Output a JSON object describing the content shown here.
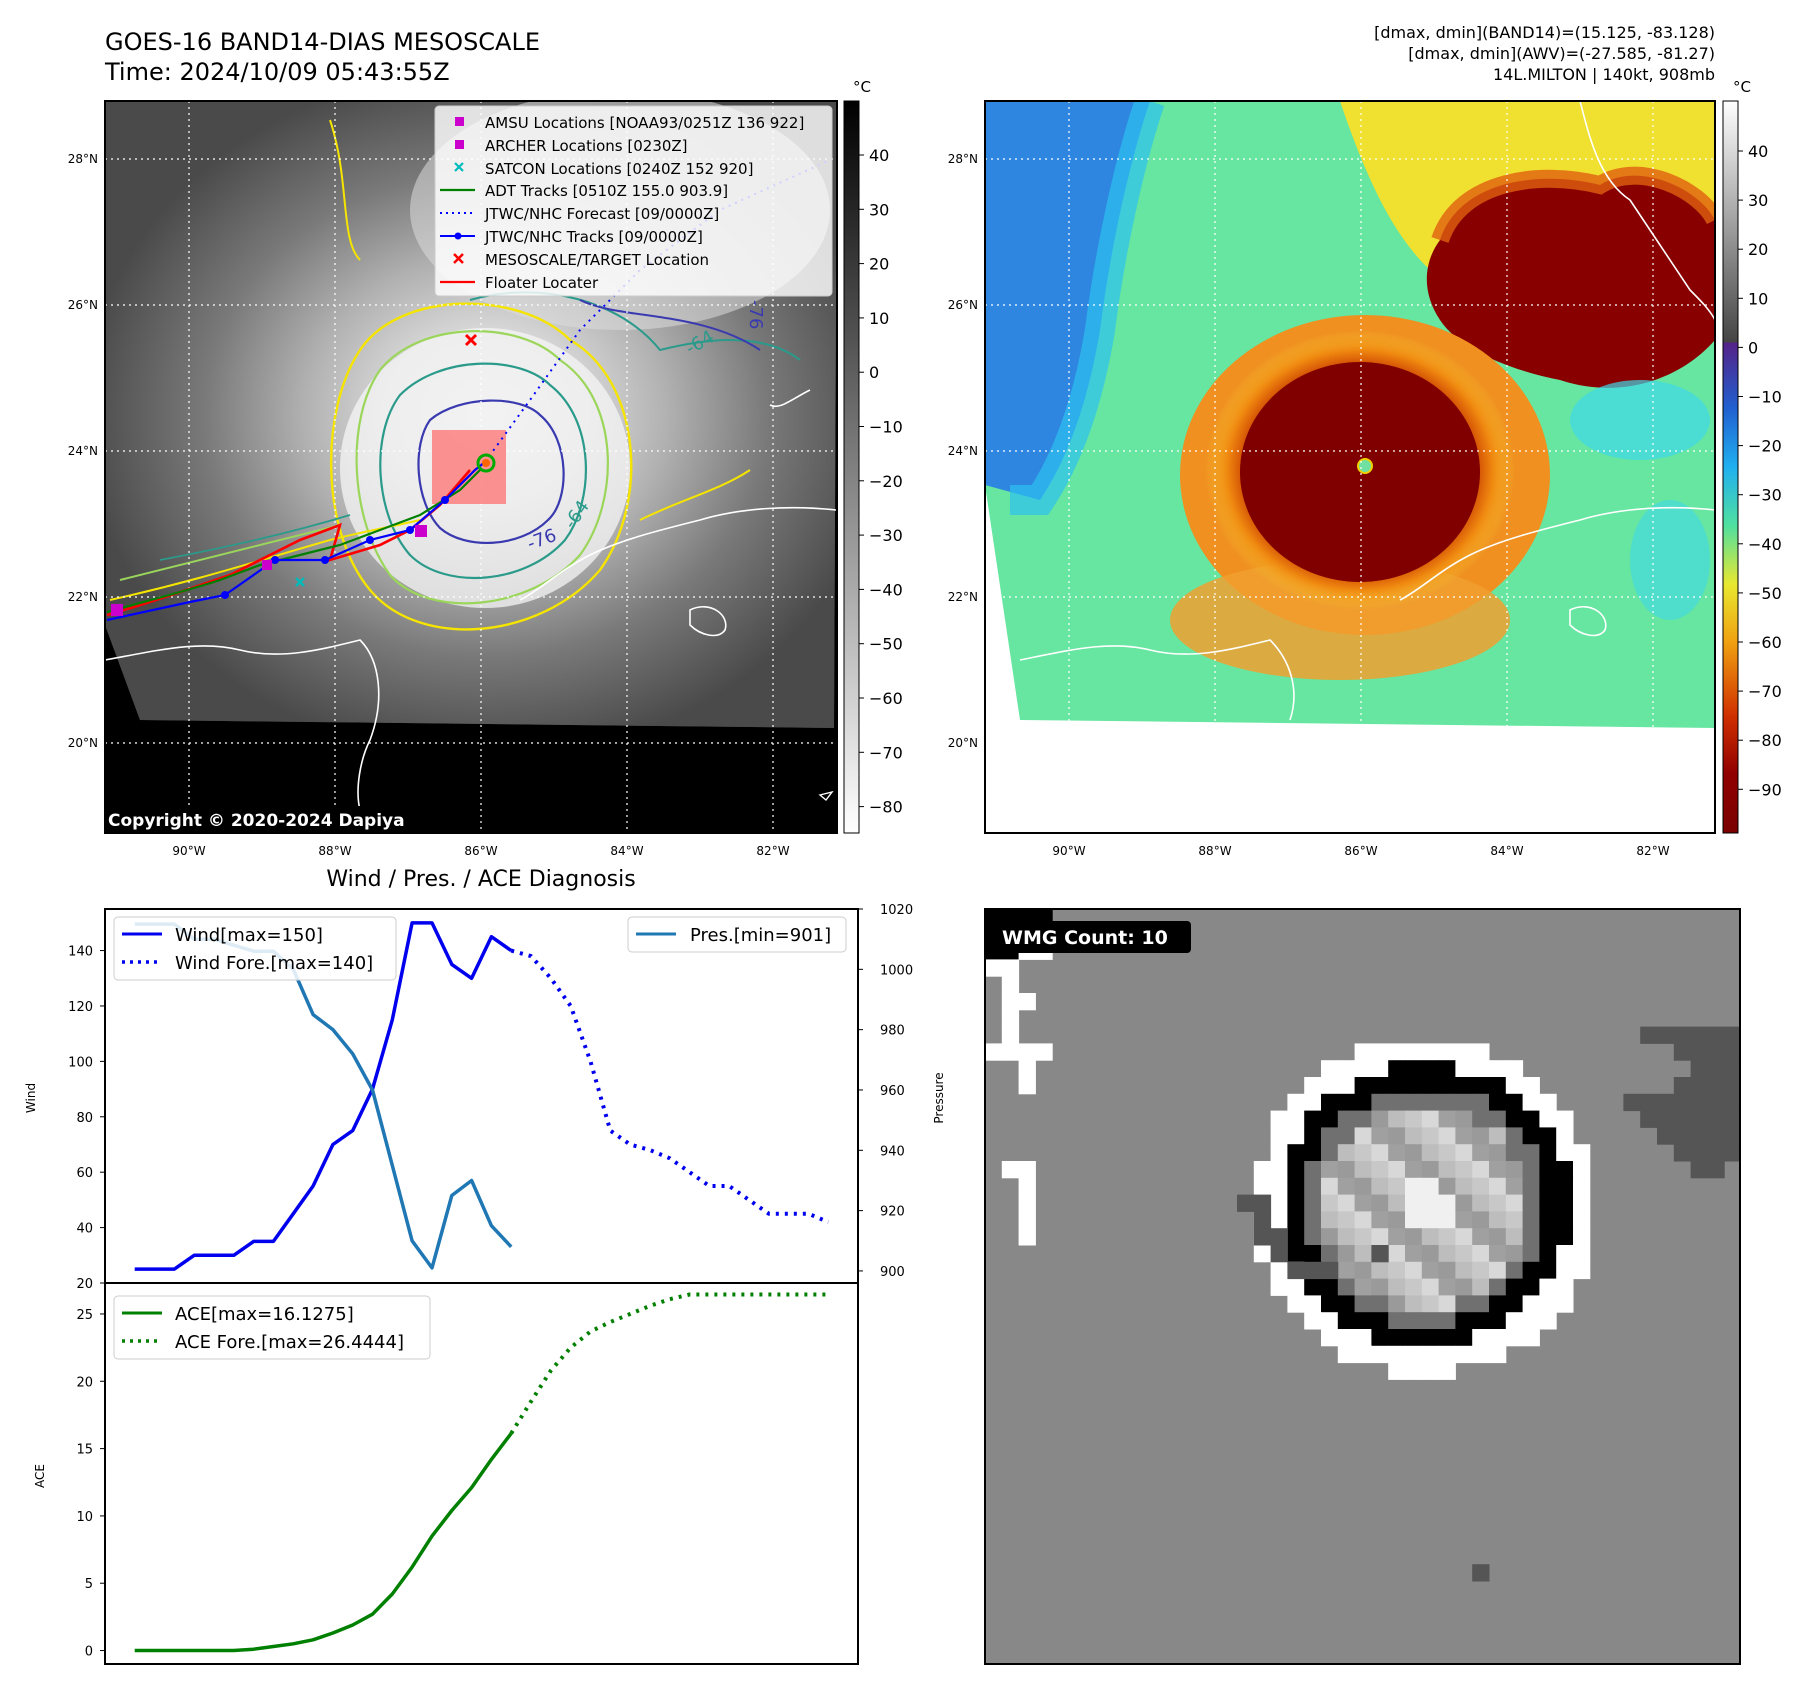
{
  "header": {
    "title_line1": "GOES-16 BAND14-DIAS MESOSCALE",
    "title_line2": "Time: 2024/10/09 05:43:55Z",
    "info_line1": "[dmax, dmin](BAND14)=(15.125, -83.128)",
    "info_line2": "[dmax, dmin](AWV)=(-27.585, -81.27)",
    "info_line3": "14L.MILTON | 140kt, 908mb"
  },
  "map_panels": {
    "lat_ticks": [
      "28°N",
      "26°N",
      "24°N",
      "22°N",
      "20°N"
    ],
    "lon_ticks": [
      "90°W",
      "88°W",
      "86°W",
      "84°W",
      "82°W"
    ],
    "copyright": "Copyright © 2020-2024 Dapiya",
    "contour_labels": [
      "-76",
      "-64",
      "-76",
      "-64",
      "-64"
    ],
    "legend": [
      {
        "label": "AMSU Locations [NOAA93/0251Z 136 922]",
        "marker": "square",
        "color": "#cc00cc"
      },
      {
        "label": "ARCHER Locations [0230Z]",
        "marker": "square",
        "color": "#cc00cc"
      },
      {
        "label": "SATCON Locations [0240Z 152 920]",
        "marker": "x",
        "color": "#00bbbb"
      },
      {
        "label": "ADT Tracks [0510Z 155.0 903.9]",
        "marker": "line",
        "color": "#008000"
      },
      {
        "label": "JTWC/NHC Forecast [09/0000Z]",
        "marker": "dotted",
        "color": "#0000ff"
      },
      {
        "label": "JTWC/NHC Tracks [09/0000Z]",
        "marker": "line-dot",
        "color": "#0000ff"
      },
      {
        "label": "MESOSCALE/TARGET Location",
        "marker": "x",
        "color": "#ff0000"
      },
      {
        "label": "Floater Locater",
        "marker": "line",
        "color": "#ff0000"
      }
    ]
  },
  "colorbars": {
    "unit": "°C",
    "gray_ticks": [
      "40",
      "30",
      "20",
      "10",
      "0",
      "−10",
      "−20",
      "−30",
      "−40",
      "−50",
      "−60",
      "−70",
      "−80"
    ],
    "color_ticks": [
      "40",
      "30",
      "20",
      "10",
      "0",
      "−10",
      "−20",
      "−30",
      "−40",
      "−50",
      "−60",
      "−70",
      "−80",
      "−90"
    ]
  },
  "wmg": {
    "label": "WMG Count: 10"
  },
  "chart_data": [
    {
      "type": "line",
      "title": "Wind / Pres. / ACE Diagnosis",
      "ylabel": "Wind",
      "y2label": "Pressure",
      "ylim": [
        20,
        155
      ],
      "y2lim": [
        896,
        1020
      ],
      "y_ticks": [
        20,
        40,
        60,
        80,
        100,
        120,
        140
      ],
      "y2_ticks": [
        900,
        920,
        940,
        960,
        980,
        1000,
        1020
      ],
      "series": [
        {
          "name": "Wind[max=150]",
          "color": "#0000ee",
          "style": "solid",
          "axis": "left",
          "x": [
            0,
            1,
            2,
            3,
            4,
            5,
            6,
            7,
            8,
            9,
            10,
            11,
            12,
            13,
            14,
            15,
            16,
            17,
            18,
            19
          ],
          "values": [
            25,
            25,
            25,
            30,
            30,
            30,
            35,
            35,
            45,
            55,
            70,
            75,
            90,
            115,
            150,
            150,
            135,
            130,
            145,
            140
          ]
        },
        {
          "name": "Wind Fore.[max=140]",
          "color": "#0000ee",
          "style": "dotted",
          "axis": "left",
          "x": [
            19,
            20,
            21,
            22,
            23,
            24,
            25,
            26,
            27,
            28,
            29,
            30,
            31,
            32,
            33,
            34,
            35
          ],
          "values": [
            140,
            138,
            130,
            120,
            100,
            75,
            70,
            68,
            65,
            60,
            55,
            55,
            50,
            45,
            45,
            45,
            42
          ]
        },
        {
          "name": "Pres.[min=901]",
          "color": "#1f77b4",
          "style": "solid",
          "axis": "right",
          "x": [
            0,
            1,
            2,
            3,
            4,
            5,
            6,
            7,
            8,
            9,
            10,
            11,
            12,
            13,
            14,
            15,
            16,
            17,
            18,
            19
          ],
          "values": [
            1015,
            1015,
            1015,
            1010,
            1010,
            1008,
            1006,
            1006,
            1000,
            985,
            980,
            972,
            960,
            935,
            910,
            901,
            925,
            930,
            915,
            908
          ]
        }
      ]
    },
    {
      "type": "line",
      "ylabel": "ACE",
      "ylim": [
        -1,
        27.3
      ],
      "y_ticks": [
        0,
        5,
        10,
        15,
        20,
        25
      ],
      "series": [
        {
          "name": "ACE[max=16.1275]",
          "color": "#008000",
          "style": "solid",
          "x": [
            0,
            1,
            2,
            3,
            4,
            5,
            6,
            7,
            8,
            9,
            10,
            11,
            12,
            13,
            14,
            15,
            16,
            17,
            18,
            19
          ],
          "values": [
            0,
            0,
            0,
            0,
            0,
            0,
            0.1,
            0.3,
            0.5,
            0.8,
            1.3,
            1.9,
            2.7,
            4.2,
            6.2,
            8.5,
            10.4,
            12.1,
            14.2,
            16.1275
          ]
        },
        {
          "name": "ACE Fore.[max=26.4444]",
          "color": "#008000",
          "style": "dotted",
          "x": [
            19,
            20,
            21,
            22,
            23,
            24,
            25,
            26,
            27,
            28,
            29,
            30,
            31,
            32,
            33,
            34,
            35
          ],
          "values": [
            16.1275,
            18.5,
            20.8,
            22.5,
            23.7,
            24.4,
            25,
            25.6,
            26.1,
            26.4444,
            26.4444,
            26.4444,
            26.4444,
            26.4444,
            26.4444,
            26.4444,
            26.4444
          ]
        }
      ]
    }
  ]
}
